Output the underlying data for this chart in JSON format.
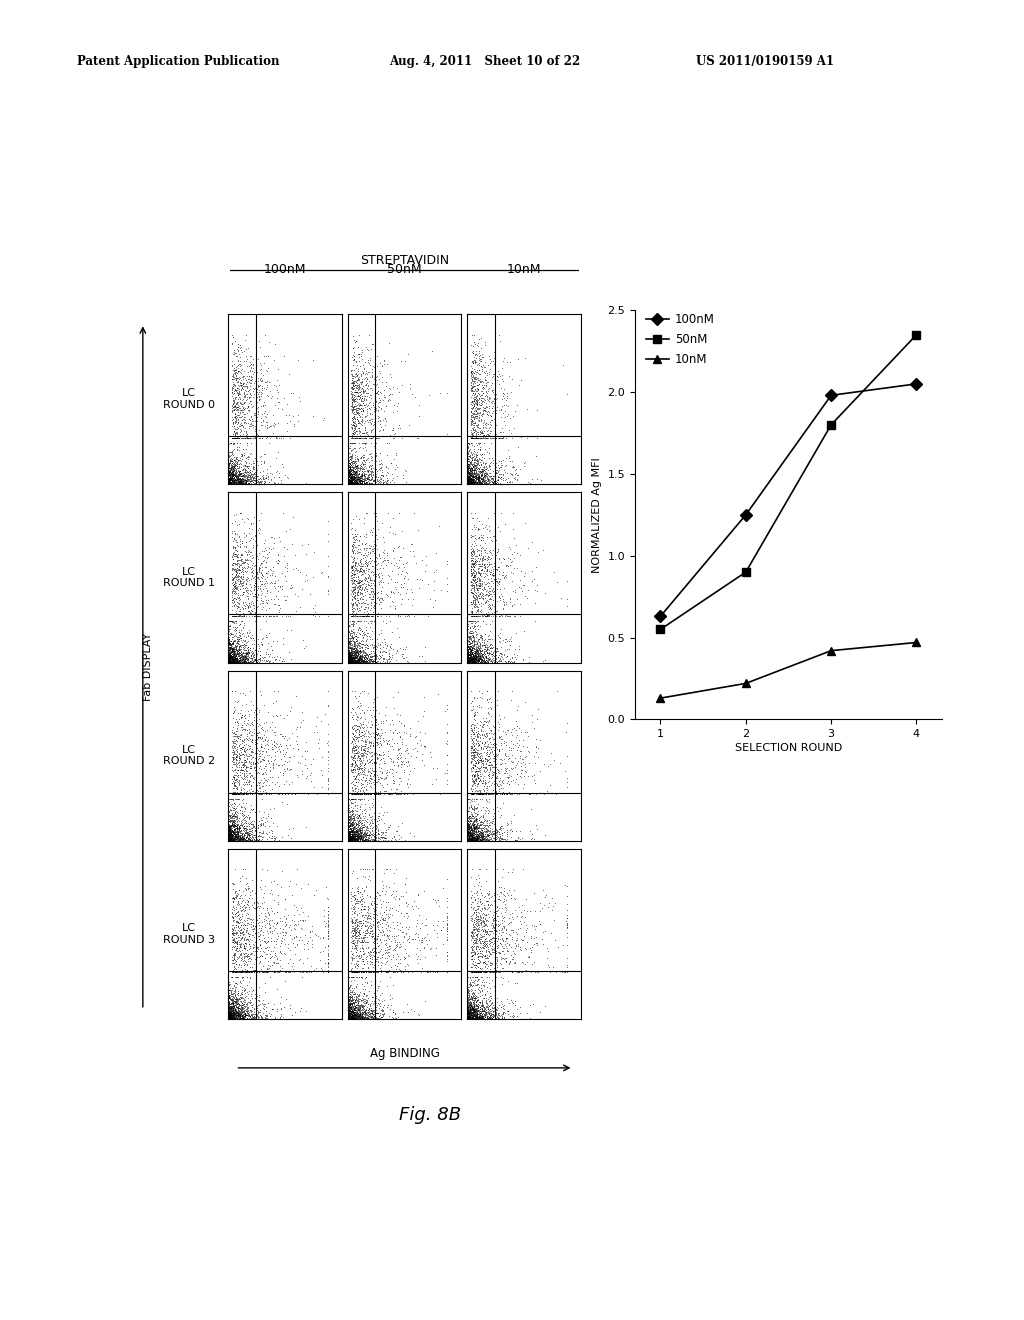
{
  "header_left": "Patent Application Publication",
  "header_mid": "Aug. 4, 2011   Sheet 10 of 22",
  "header_right": "US 2011/0190159 A1",
  "figure_label": "Fig. 8B",
  "streptavidin_label": "STREPTAVIDIN",
  "col_labels": [
    "100nM",
    "50nM",
    "10nM"
  ],
  "row_labels": [
    "LC\nROUND 0",
    "LC\nROUND 1",
    "LC\nROUND 2",
    "LC\nROUND 3"
  ],
  "fab_display_label": "Fab DISPLAY",
  "ag_binding_label": "Ag BINDING",
  "plot_ylabel": "NORMALIZED Ag MFI",
  "plot_xlabel": "SELECTION ROUND",
  "series_labels": [
    "100nM",
    "50nM",
    "10nM"
  ],
  "x_values": [
    1,
    2,
    3,
    4
  ],
  "series_100nM": [
    0.63,
    1.25,
    1.98,
    2.05
  ],
  "series_50nM": [
    0.55,
    0.9,
    1.8,
    2.35
  ],
  "series_10nM": [
    0.13,
    0.22,
    0.42,
    0.47
  ],
  "ylim": [
    0.0,
    2.5
  ],
  "yticks": [
    0.0,
    0.5,
    1.0,
    1.5,
    2.0,
    2.5
  ],
  "xticks": [
    1,
    2,
    3,
    4
  ],
  "bg_color": "#ffffff",
  "line_color": "#000000",
  "marker_100nM": "D",
  "marker_50nM": "s",
  "marker_10nM": "^"
}
